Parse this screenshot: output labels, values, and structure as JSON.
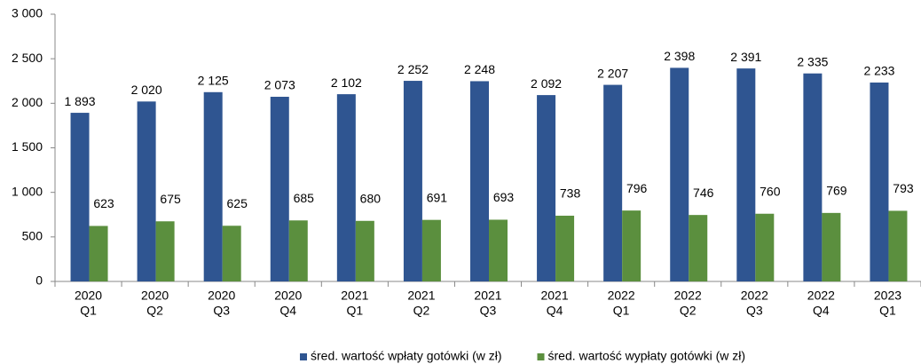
{
  "chart_data": {
    "type": "bar",
    "categories": [
      [
        "2020",
        "Q1"
      ],
      [
        "2020",
        "Q2"
      ],
      [
        "2020",
        "Q3"
      ],
      [
        "2020",
        "Q4"
      ],
      [
        "2021",
        "Q1"
      ],
      [
        "2021",
        "Q2"
      ],
      [
        "2021",
        "Q3"
      ],
      [
        "2021",
        "Q4"
      ],
      [
        "2022",
        "Q1"
      ],
      [
        "2022",
        "Q2"
      ],
      [
        "2022",
        "Q3"
      ],
      [
        "2022",
        "Q4"
      ],
      [
        "2023",
        "Q1"
      ]
    ],
    "series": [
      {
        "name": "śred. wartość wpłaty gotówki (w zł)",
        "color": "#2f5591",
        "values": [
          1893,
          2020,
          2125,
          2073,
          2102,
          2252,
          2248,
          2092,
          2207,
          2398,
          2391,
          2335,
          2233
        ],
        "value_labels": [
          "1 893",
          "2 020",
          "2 125",
          "2 073",
          "2 102",
          "2 252",
          "2 248",
          "2 092",
          "2 207",
          "2 398",
          "2 391",
          "2 335",
          "2 233"
        ]
      },
      {
        "name": "śred. wartość wypłaty gotówki (w zł)",
        "color": "#5b8f3e",
        "values": [
          623,
          675,
          625,
          685,
          680,
          691,
          693,
          738,
          796,
          746,
          760,
          769,
          793
        ]
      }
    ],
    "ylim": [
      0,
      3000
    ],
    "yticks": [
      0,
      500,
      {
        "value": 1000,
        "label": "1 000"
      },
      {
        "value": 1500,
        "label": "1 500"
      },
      {
        "value": 2000,
        "label": "2 000"
      },
      {
        "value": 2500,
        "label": "2 500"
      },
      {
        "value": 3000,
        "label": "3 000"
      }
    ],
    "grid": false,
    "legend": "bottom"
  }
}
